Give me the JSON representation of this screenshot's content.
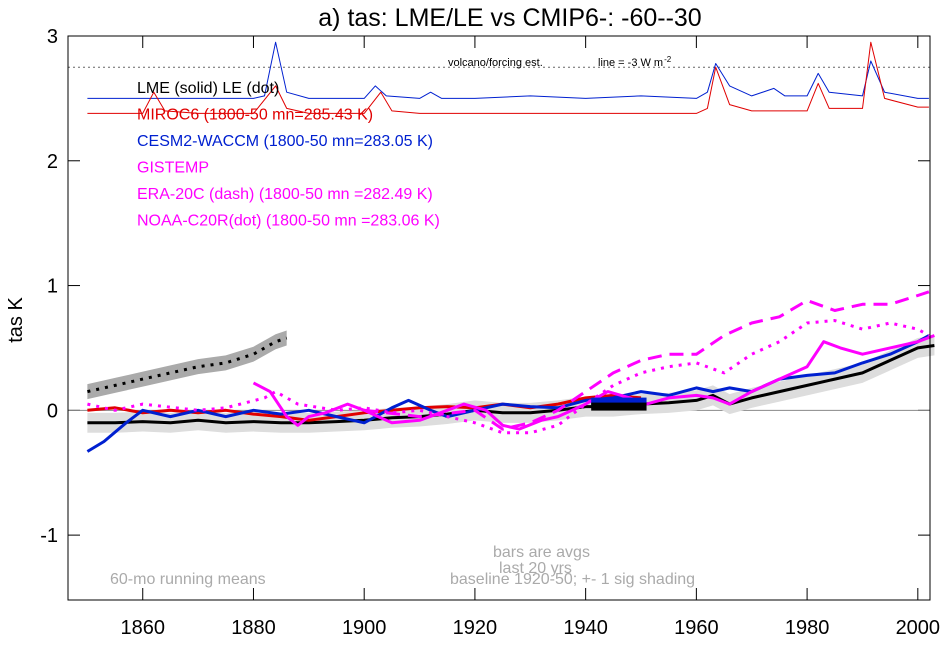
{
  "chart_data": {
    "type": "line",
    "title": "a) tas: LME/LE vs CMIP6-: -60--30",
    "y_label": "tas K",
    "xlim": [
      1846.5,
      2002.2
    ],
    "ylim": [
      -1.52,
      3
    ],
    "xticks": [
      1860,
      1880,
      1900,
      1920,
      1940,
      1960,
      1980,
      2000
    ],
    "yticks": [
      -1,
      0,
      1,
      2,
      3
    ],
    "ref_line": 2.75,
    "legend": [
      {
        "text": "LME (solid)   LE (dot)",
        "color": "#000000"
      },
      {
        "text": "MIROC6 (1800-50 mn=285.43 K)",
        "color": "#e00000"
      },
      {
        "text": "CESM2-WACCM (1800-50 mn=283.05 K)",
        "color": "#0020d0"
      },
      {
        "text": "GISTEMP",
        "color": "#ff00ff"
      },
      {
        "text": "ERA-20C (dash) (1800-50 mn =282.49 K)",
        "color": "#ff00ff"
      },
      {
        "text": "NOAA-C20R(dot) (1800-50 mn =283.06 K)",
        "color": "#ff00ff"
      }
    ],
    "annotations": [
      "volcano/forcing est.",
      "line = -3 W m",
      "-2",
      "bars are avgs",
      "last 20 yrs",
      "baseline 1920-50; +- 1 sig shading",
      "60-mo running means"
    ],
    "series": [
      {
        "color": "#000000",
        "dash": "solid",
        "width": 3,
        "shade": 0.08,
        "x": [
          1850,
          1855,
          1860,
          1865,
          1870,
          1875,
          1880,
          1885,
          1890,
          1895,
          1900,
          1905,
          1910,
          1915,
          1920,
          1925,
          1930,
          1935,
          1940,
          1945,
          1950,
          1955,
          1960,
          1963,
          1966,
          1970,
          1975,
          1980,
          1985,
          1990,
          1995,
          2000,
          2003
        ],
        "values": [
          -0.1,
          -0.1,
          -0.09,
          -0.1,
          -0.08,
          -0.1,
          -0.09,
          -0.1,
          -0.1,
          -0.09,
          -0.08,
          -0.06,
          -0.05,
          -0.03,
          0,
          -0.02,
          -0.02,
          0,
          0.03,
          0.03,
          0.05,
          0.06,
          0.08,
          0.12,
          0.05,
          0.1,
          0.15,
          0.2,
          0.25,
          0.3,
          0.4,
          0.5,
          0.52
        ]
      },
      {
        "color": "#000000",
        "dash": "dot",
        "width": 3,
        "shade": 0.06,
        "x": [
          1850,
          1855,
          1860,
          1865,
          1870,
          1875,
          1880,
          1884,
          1886
        ],
        "values": [
          0.15,
          0.2,
          0.25,
          0.3,
          0.35,
          0.38,
          0.45,
          0.55,
          0.58
        ]
      },
      {
        "color": "#e00000",
        "dash": "solid",
        "width": 3,
        "x": [
          1850,
          1855,
          1860,
          1865,
          1870,
          1875,
          1880,
          1885,
          1890,
          1895,
          1900,
          1905,
          1910,
          1915,
          1920,
          1925,
          1930,
          1935,
          1940,
          1945,
          1950
        ],
        "values": [
          0,
          0.02,
          -0.02,
          0,
          -0.02,
          0,
          -0.03,
          -0.05,
          -0.08,
          -0.05,
          -0.02,
          0,
          0.02,
          0.03,
          0.02,
          0.05,
          0.02,
          0.05,
          0.1,
          0.12,
          0.1
        ]
      },
      {
        "color": "#0020d0",
        "dash": "solid",
        "width": 3,
        "x": [
          1850,
          1853,
          1857,
          1860,
          1865,
          1870,
          1875,
          1880,
          1885,
          1890,
          1895,
          1900,
          1905,
          1908,
          1912,
          1915,
          1920,
          1925,
          1930,
          1935,
          1940,
          1945,
          1950,
          1955,
          1960,
          1963,
          1966,
          1970,
          1975,
          1980,
          1985,
          1990,
          1995,
          2000,
          2002
        ],
        "values": [
          -0.33,
          -0.25,
          -0.1,
          0,
          -0.05,
          0,
          -0.05,
          0,
          -0.03,
          0,
          -0.05,
          -0.1,
          0.02,
          0.08,
          0,
          -0.05,
          0,
          0.05,
          0.03,
          0.02,
          0.08,
          0.1,
          0.15,
          0.12,
          0.18,
          0.15,
          0.18,
          0.15,
          0.25,
          0.28,
          0.3,
          0.38,
          0.45,
          0.55,
          0.6
        ]
      },
      {
        "color": "#ff00ff",
        "dash": "solid",
        "width": 3,
        "x": [
          1880,
          1883,
          1886,
          1888,
          1890,
          1893,
          1897,
          1900,
          1905,
          1910,
          1915,
          1918,
          1922,
          1925,
          1928,
          1932,
          1935,
          1940,
          1944,
          1948,
          1951,
          1955,
          1960,
          1963,
          1966,
          1970,
          1975,
          1980,
          1983,
          1986,
          1990,
          1995,
          2000,
          2003
        ],
        "values": [
          0.22,
          0.15,
          -0.05,
          -0.12,
          -0.05,
          -0.02,
          0.05,
          0,
          -0.1,
          -0.08,
          0,
          0.05,
          0,
          -0.12,
          -0.15,
          -0.08,
          -0.05,
          0.05,
          0.15,
          0.1,
          0.05,
          0.1,
          0.12,
          0.1,
          0.05,
          0.15,
          0.25,
          0.35,
          0.55,
          0.5,
          0.45,
          0.5,
          0.55,
          0.6
        ]
      },
      {
        "color": "#ff00ff",
        "dash": "dash",
        "width": 3,
        "x": [
          1900,
          1910,
          1920,
          1925,
          1930,
          1935,
          1940,
          1945,
          1950,
          1955,
          1960,
          1965,
          1970,
          1975,
          1980,
          1985,
          1990,
          1995,
          2000,
          2002
        ],
        "values": [
          0,
          -0.05,
          0,
          -0.15,
          -0.1,
          0,
          0.15,
          0.3,
          0.4,
          0.45,
          0.45,
          0.6,
          0.7,
          0.75,
          0.88,
          0.8,
          0.85,
          0.85,
          0.92,
          0.95
        ]
      },
      {
        "color": "#ff00ff",
        "dash": "dot",
        "width": 3,
        "x": [
          1850,
          1855,
          1860,
          1870,
          1875,
          1882,
          1884,
          1888,
          1895,
          1900,
          1905,
          1910,
          1915,
          1920,
          1925,
          1930,
          1935,
          1940,
          1945,
          1950,
          1955,
          1960,
          1965,
          1970,
          1975,
          1980,
          1985,
          1990,
          1995,
          2000,
          2002
        ],
        "values": [
          0.05,
          0,
          0.05,
          0,
          0.02,
          0.1,
          0.15,
          0.05,
          0,
          0.02,
          -0.02,
          0,
          -0.05,
          -0.1,
          -0.18,
          -0.18,
          -0.12,
          0.05,
          0.2,
          0.3,
          0.35,
          0.38,
          0.3,
          0.45,
          0.55,
          0.7,
          0.72,
          0.65,
          0.7,
          0.65,
          0.6
        ]
      },
      {
        "color": "#0020d0",
        "dash": "solid",
        "width": 1,
        "x": [
          1850,
          1860,
          1870,
          1880,
          1882,
          1884,
          1886,
          1890,
          1900,
          1902,
          1904,
          1910,
          1912,
          1914,
          1920,
          1930,
          1940,
          1950,
          1960,
          1962,
          1963.5,
          1966,
          1970,
          1974,
          1976,
          1980,
          1982,
          1984,
          1990,
          1991.5,
          1994,
          2000,
          2002
        ],
        "values": [
          2.5,
          2.5,
          2.5,
          2.5,
          2.52,
          2.95,
          2.55,
          2.5,
          2.5,
          2.6,
          2.52,
          2.5,
          2.55,
          2.5,
          2.5,
          2.52,
          2.5,
          2.52,
          2.5,
          2.55,
          2.78,
          2.6,
          2.52,
          2.58,
          2.52,
          2.52,
          2.7,
          2.55,
          2.52,
          2.8,
          2.55,
          2.5,
          2.5
        ]
      },
      {
        "color": "#e00000",
        "dash": "solid",
        "width": 1,
        "x": [
          1850,
          1860,
          1862,
          1864,
          1870,
          1880,
          1884,
          1886,
          1890,
          1900,
          1903,
          1905,
          1910,
          1920,
          1930,
          1940,
          1950,
          1960,
          1962,
          1963.5,
          1966,
          1970,
          1980,
          1982,
          1984,
          1990,
          1991.5,
          1994,
          2000,
          2002
        ],
        "values": [
          2.38,
          2.38,
          2.55,
          2.4,
          2.38,
          2.38,
          2.6,
          2.42,
          2.38,
          2.38,
          2.55,
          2.4,
          2.38,
          2.38,
          2.38,
          2.38,
          2.38,
          2.38,
          2.42,
          2.75,
          2.45,
          2.4,
          2.4,
          2.62,
          2.42,
          2.42,
          2.95,
          2.5,
          2.43,
          2.43
        ]
      }
    ],
    "bars": [
      {
        "color": "#0020d0",
        "x": [
          1941,
          1951
        ],
        "value": 0.07
      },
      {
        "color": "#000000",
        "x": [
          1941,
          1951
        ],
        "value": 0.03
      }
    ]
  }
}
